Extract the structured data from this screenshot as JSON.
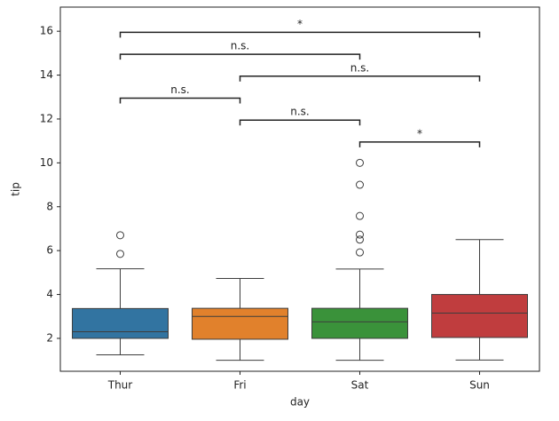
{
  "chart_data": {
    "type": "box",
    "x_label": "day",
    "y_label": "tip",
    "categories": [
      "Thur",
      "Fri",
      "Sat",
      "Sun"
    ],
    "colors": [
      "#3274a1",
      "#e1812c",
      "#3a923a",
      "#c03d3e"
    ],
    "boxes": [
      {
        "min": 1.25,
        "q1": 2.0,
        "median": 2.3,
        "q3": 3.36,
        "max": 5.17,
        "outliers": [
          5.85,
          6.7
        ]
      },
      {
        "min": 1.0,
        "q1": 1.96,
        "median": 3.0,
        "q3": 3.37,
        "max": 4.73,
        "outliers": []
      },
      {
        "min": 1.0,
        "q1": 2.0,
        "median": 2.75,
        "q3": 3.37,
        "max": 5.16,
        "outliers": [
          5.92,
          6.5,
          6.73,
          7.58,
          9.0,
          10.0
        ]
      },
      {
        "min": 1.01,
        "q1": 2.04,
        "median": 3.15,
        "q3": 4.0,
        "max": 6.5,
        "outliers": []
      }
    ],
    "annotations": [
      {
        "from": "Sat",
        "to": "Sun",
        "y": 10.95,
        "label": "*"
      },
      {
        "from": "Fri",
        "to": "Sat",
        "y": 11.95,
        "label": "n.s."
      },
      {
        "from": "Thur",
        "to": "Fri",
        "y": 12.95,
        "label": "n.s."
      },
      {
        "from": "Fri",
        "to": "Sun",
        "y": 13.95,
        "label": "n.s."
      },
      {
        "from": "Thur",
        "to": "Sat",
        "y": 14.95,
        "label": "n.s."
      },
      {
        "from": "Thur",
        "to": "Sun",
        "y": 15.95,
        "label": "*"
      }
    ],
    "ylim": [
      0.5,
      17.1
    ],
    "yticks": [
      2,
      4,
      6,
      8,
      10,
      12,
      14,
      16
    ]
  }
}
